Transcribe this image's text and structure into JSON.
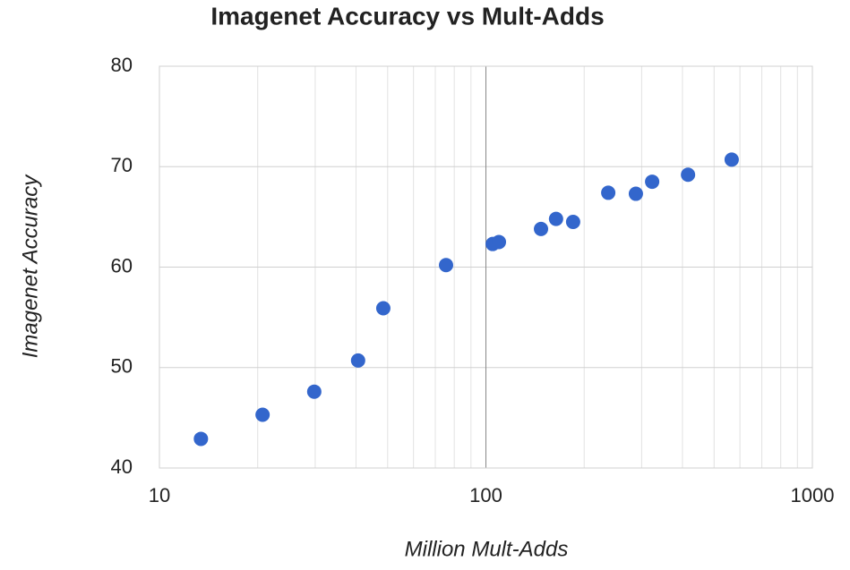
{
  "chart_data": {
    "type": "scatter",
    "title": "Imagenet Accuracy vs Mult-Adds",
    "x_label": "Million Mult-Adds",
    "y_label": "Imagenet Accuracy",
    "x": [
      13.4,
      20.7,
      29.8,
      40.6,
      48.5,
      75.5,
      104.9,
      109.6,
      147.5,
      164,
      185,
      237,
      288,
      323,
      416,
      566
    ],
    "values": [
      42.9,
      45.3,
      47.6,
      50.7,
      55.9,
      60.2,
      62.3,
      62.5,
      63.8,
      64.8,
      64.5,
      67.4,
      67.3,
      68.5,
      69.2,
      70.7
    ],
    "color": "#3366cc",
    "xlim": [
      10,
      1000
    ],
    "xticks": [
      10,
      100,
      1000
    ],
    "x_log": true,
    "ylim": [
      40,
      80
    ],
    "yticks": [
      40,
      50,
      60,
      70,
      80
    ],
    "grid": true
  }
}
